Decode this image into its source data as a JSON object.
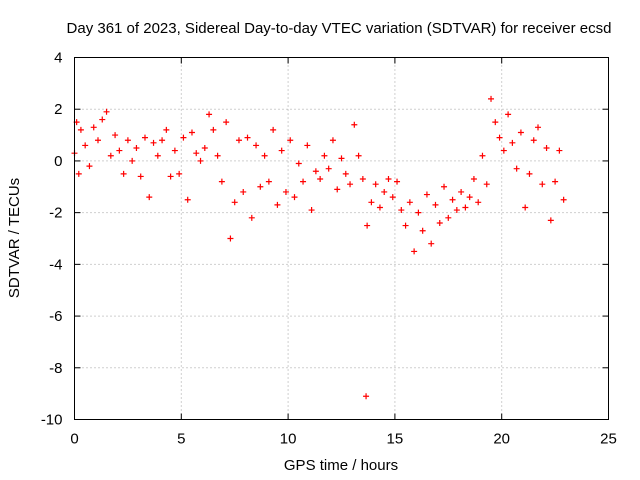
{
  "chart_data": {
    "type": "scatter",
    "title": "Day 361 of 2023, Sidereal Day-to-day VTEC variation (SDTVAR) for receiver ecsd",
    "xlabel": "GPS time / hours",
    "ylabel": "SDTVAR / TECUs",
    "xlim": [
      0,
      25
    ],
    "ylim": [
      -10,
      4
    ],
    "xticks": [
      0,
      5,
      10,
      15,
      20,
      25
    ],
    "yticks": [
      -10,
      -8,
      -6,
      -4,
      -2,
      0,
      2,
      4
    ],
    "grid": true,
    "marker": "+",
    "series": [
      {
        "name": "SDTVAR",
        "color": "#ff0000",
        "x": [
          0.0,
          0.1,
          0.2,
          0.3,
          0.5,
          0.7,
          0.9,
          1.1,
          1.3,
          1.5,
          1.7,
          1.9,
          2.1,
          2.3,
          2.5,
          2.7,
          2.9,
          3.1,
          3.3,
          3.5,
          3.7,
          3.9,
          4.1,
          4.3,
          4.5,
          4.7,
          4.9,
          5.1,
          5.3,
          5.5,
          5.7,
          5.9,
          6.1,
          6.3,
          6.5,
          6.7,
          6.9,
          7.1,
          7.3,
          7.5,
          7.7,
          7.9,
          8.1,
          8.3,
          8.5,
          8.7,
          8.9,
          9.1,
          9.3,
          9.5,
          9.7,
          9.9,
          10.1,
          10.3,
          10.5,
          10.7,
          10.9,
          11.1,
          11.3,
          11.5,
          11.7,
          11.9,
          12.1,
          12.3,
          12.5,
          12.7,
          12.9,
          13.1,
          13.3,
          13.5,
          13.65,
          13.7,
          13.9,
          14.1,
          14.3,
          14.5,
          14.7,
          14.9,
          15.1,
          15.3,
          15.5,
          15.7,
          15.9,
          16.1,
          16.3,
          16.5,
          16.7,
          16.9,
          17.1,
          17.3,
          17.5,
          17.7,
          17.9,
          18.1,
          18.3,
          18.5,
          18.7,
          18.9,
          19.1,
          19.3,
          19.5,
          19.7,
          19.9,
          20.1,
          20.3,
          20.5,
          20.7,
          20.9,
          21.1,
          21.3,
          21.5,
          21.7,
          21.9,
          22.1,
          22.3,
          22.5,
          22.7,
          22.9
        ],
        "y": [
          0.3,
          1.5,
          -0.5,
          1.2,
          0.6,
          -0.2,
          1.3,
          0.8,
          1.6,
          1.9,
          0.2,
          1.0,
          0.4,
          -0.5,
          0.8,
          0.0,
          0.5,
          -0.6,
          0.9,
          -1.4,
          0.7,
          0.2,
          0.8,
          1.2,
          -0.6,
          0.4,
          -0.5,
          0.9,
          -1.5,
          1.1,
          0.3,
          0.0,
          0.5,
          1.8,
          1.2,
          0.2,
          -0.8,
          1.5,
          -3.0,
          -1.6,
          0.8,
          -1.2,
          0.9,
          -2.2,
          0.6,
          -1.0,
          0.2,
          -0.8,
          1.2,
          -1.7,
          0.4,
          -1.2,
          0.8,
          -1.4,
          -0.1,
          -0.8,
          0.6,
          -1.9,
          -0.4,
          -0.7,
          0.2,
          -0.3,
          0.8,
          -1.1,
          0.1,
          -0.5,
          -0.9,
          1.4,
          0.2,
          -0.7,
          -9.1,
          -2.5,
          -1.6,
          -0.9,
          -1.8,
          -1.2,
          -0.7,
          -1.4,
          -0.8,
          -1.9,
          -2.5,
          -1.6,
          -3.5,
          -2.0,
          -2.7,
          -1.3,
          -3.2,
          -1.7,
          -2.4,
          -1.0,
          -2.2,
          -1.5,
          -1.9,
          -1.2,
          -1.8,
          -1.4,
          -0.7,
          -1.6,
          0.2,
          -0.9,
          2.4,
          1.5,
          0.9,
          0.4,
          1.8,
          0.7,
          -0.3,
          1.1,
          -1.8,
          -0.5,
          0.8,
          1.3,
          -0.9,
          0.5,
          -2.3,
          -0.8,
          0.4,
          -1.5
        ]
      }
    ]
  }
}
